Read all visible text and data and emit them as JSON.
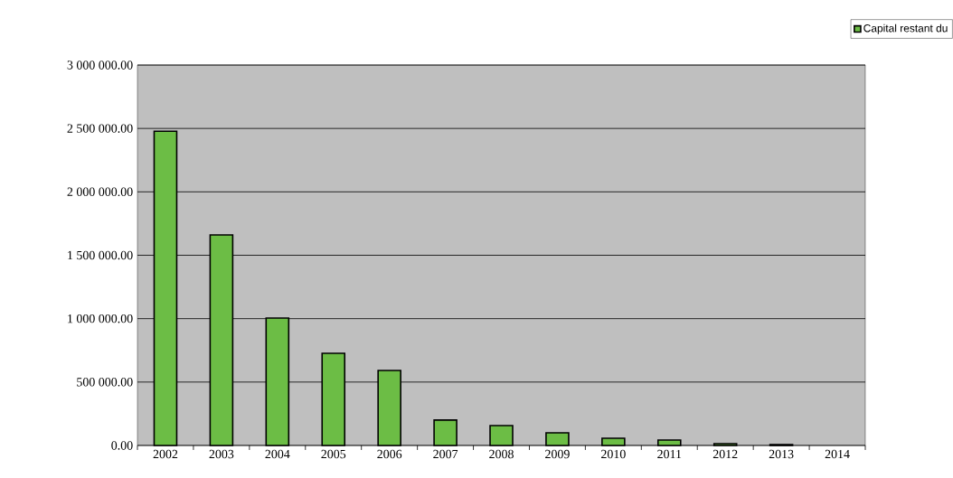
{
  "chart_data": {
    "type": "bar",
    "categories": [
      "2002",
      "2003",
      "2004",
      "2005",
      "2006",
      "2007",
      "2008",
      "2009",
      "2010",
      "2011",
      "2012",
      "2013",
      "2014"
    ],
    "series": [
      {
        "name": "Capital restant du",
        "color": "#6cbd45",
        "values": [
          2478000,
          1660000,
          1005000,
          727000,
          591000,
          200000,
          157000,
          100000,
          57000,
          43000,
          14000,
          7000,
          null
        ]
      }
    ],
    "ylim": [
      0,
      3000000
    ],
    "yticks": [
      {
        "value": 0,
        "label": "0.00"
      },
      {
        "value": 500000,
        "label": "500 000.00"
      },
      {
        "value": 1000000,
        "label": "1 000 000.00"
      },
      {
        "value": 1500000,
        "label": "1 500 000.00"
      },
      {
        "value": 2000000,
        "label": "2 000 000.00"
      },
      {
        "value": 2500000,
        "label": "2 500 000.00"
      },
      {
        "value": 3000000,
        "label": "3 000 000.00"
      }
    ],
    "grid": "y",
    "legend": "top right"
  }
}
